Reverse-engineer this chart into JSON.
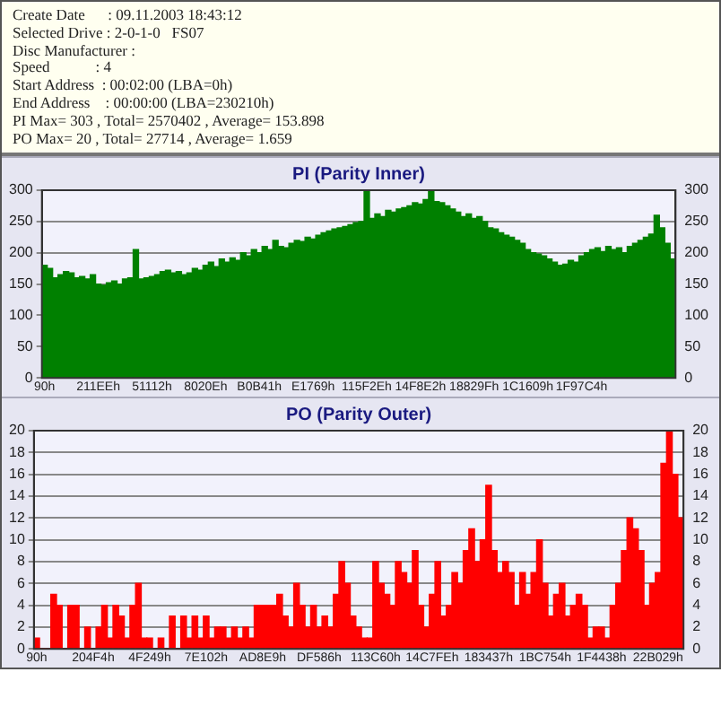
{
  "chart_data": [
    {
      "type": "other",
      "annotations": [
        "Create Date      : 09.11.2003 18:43:12",
        "Selected Drive : 2-0-1-0   FS07",
        "Disc Manufacturer :",
        "Speed            : 4",
        "Start Address  : 00:02:00 (LBA=0h)",
        "End Address    : 00:00:00 (LBA=230210h)",
        "PI Max= 303 , Total= 2570402 , Average= 153.898",
        "PO Max= 20 , Total= 27714 , Average= 1.659"
      ]
    },
    {
      "type": "bar",
      "title": "PI (Parity Inner)",
      "categories": [
        "90h",
        null,
        null,
        null,
        null,
        null,
        null,
        null,
        null,
        null,
        "211EEh",
        null,
        null,
        null,
        null,
        null,
        null,
        null,
        null,
        null,
        "51112h",
        null,
        null,
        null,
        null,
        null,
        null,
        null,
        null,
        null,
        "8020Eh",
        null,
        null,
        null,
        null,
        null,
        null,
        null,
        null,
        null,
        "B0B41h",
        null,
        null,
        null,
        null,
        null,
        null,
        null,
        null,
        null,
        "E1769h",
        null,
        null,
        null,
        null,
        null,
        null,
        null,
        null,
        null,
        "115F2Eh",
        null,
        null,
        null,
        null,
        null,
        null,
        null,
        null,
        null,
        "14F8E2h",
        null,
        null,
        null,
        null,
        null,
        null,
        null,
        null,
        null,
        "18829Fh",
        null,
        null,
        null,
        null,
        null,
        null,
        null,
        null,
        null,
        "1C1609h",
        null,
        null,
        null,
        null,
        null,
        null,
        null,
        null,
        null,
        "1F97C4h",
        null,
        null,
        null,
        null,
        null,
        null,
        null,
        null,
        null,
        null,
        null,
        null,
        null,
        null,
        null,
        null,
        null
      ],
      "series": [
        {
          "color": "#008000",
          "values": [
            180,
            175,
            160,
            165,
            170,
            168,
            160,
            162,
            158,
            165,
            150,
            148,
            152,
            155,
            150,
            158,
            160,
            205,
            158,
            160,
            162,
            165,
            170,
            172,
            168,
            170,
            165,
            168,
            175,
            172,
            180,
            185,
            178,
            190,
            185,
            192,
            188,
            200,
            195,
            205,
            200,
            210,
            205,
            220,
            210,
            208,
            215,
            220,
            218,
            225,
            222,
            228,
            232,
            235,
            238,
            240,
            242,
            245,
            248,
            250,
            300,
            255,
            262,
            258,
            268,
            265,
            270,
            272,
            275,
            280,
            278,
            285,
            300,
            282,
            280,
            275,
            270,
            265,
            258,
            262,
            255,
            258,
            250,
            240,
            238,
            232,
            228,
            225,
            220,
            215,
            205,
            200,
            198,
            195,
            190,
            185,
            180,
            182,
            188,
            185,
            195,
            200,
            205,
            208,
            202,
            210,
            205,
            208,
            200,
            210,
            215,
            220,
            225,
            230,
            260,
            240,
            215,
            190
          ]
        }
      ],
      "ylim": [
        0,
        300
      ],
      "yticks": [
        0,
        50,
        100,
        150,
        200,
        250,
        300
      ],
      "y2lim": [
        0,
        300
      ],
      "y2ticks": [
        0,
        50,
        100,
        150,
        200,
        250,
        300
      ],
      "grid": "y"
    },
    {
      "type": "bar",
      "title": "PO (Parity Outer)",
      "categories": [
        "90h",
        null,
        null,
        null,
        null,
        null,
        null,
        null,
        null,
        null,
        "204F4h",
        null,
        null,
        null,
        null,
        null,
        null,
        null,
        null,
        null,
        "4F249h",
        null,
        null,
        null,
        null,
        null,
        null,
        null,
        null,
        null,
        "7E102h",
        null,
        null,
        null,
        null,
        null,
        null,
        null,
        null,
        null,
        "AD8E9h",
        null,
        null,
        null,
        null,
        null,
        null,
        null,
        null,
        null,
        "DF586h",
        null,
        null,
        null,
        null,
        null,
        null,
        null,
        null,
        null,
        "113C60h",
        null,
        null,
        null,
        null,
        null,
        null,
        null,
        null,
        null,
        "14C7FEh",
        null,
        null,
        null,
        null,
        null,
        null,
        null,
        null,
        null,
        "183437h",
        null,
        null,
        null,
        null,
        null,
        null,
        null,
        null,
        null,
        "1BC754h",
        null,
        null,
        null,
        null,
        null,
        null,
        null,
        null,
        null,
        "1F4438h",
        null,
        null,
        null,
        null,
        null,
        null,
        null,
        null,
        null,
        "22B029h",
        null,
        null,
        null,
        null
      ],
      "series": [
        {
          "color": "#ff0000",
          "values": [
            1,
            0,
            0,
            5,
            4,
            0,
            4,
            4,
            0,
            2,
            0,
            2,
            4,
            1,
            4,
            3,
            1,
            4,
            6,
            1,
            1,
            0,
            1,
            0,
            3,
            0,
            3,
            1,
            3,
            1,
            3,
            1,
            2,
            2,
            1,
            2,
            1,
            2,
            1,
            4,
            4,
            4,
            4,
            5,
            3,
            2,
            6,
            4,
            2,
            4,
            2,
            3,
            2,
            5,
            8,
            6,
            3,
            2,
            1,
            1,
            8,
            6,
            5,
            4,
            8,
            7,
            6,
            9,
            4,
            2,
            5,
            8,
            3,
            4,
            7,
            6,
            9,
            11,
            8,
            10,
            15,
            9,
            7,
            8,
            7,
            4,
            7,
            5,
            7,
            10,
            6,
            3,
            5,
            6,
            3,
            4,
            5,
            4,
            1,
            2,
            2,
            1,
            4,
            6,
            9,
            12,
            11,
            9,
            4,
            6,
            7,
            17,
            20,
            16,
            12
          ]
        }
      ],
      "ylim": [
        0,
        20
      ],
      "yticks": [
        0,
        2,
        4,
        6,
        8,
        10,
        12,
        14,
        16,
        18,
        20
      ],
      "y2lim": [
        0,
        20
      ],
      "y2ticks": [
        0,
        2,
        4,
        6,
        8,
        10,
        12,
        14,
        16,
        18,
        20
      ],
      "grid": "y"
    }
  ]
}
